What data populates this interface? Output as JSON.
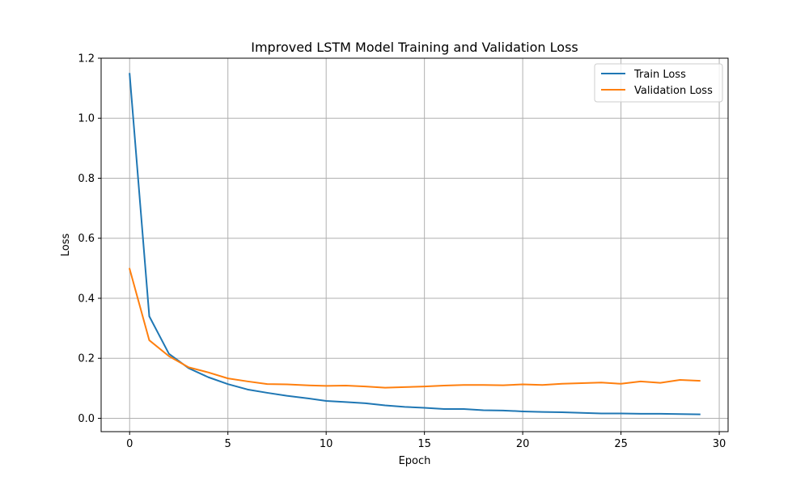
{
  "chart_data": {
    "type": "line",
    "title": "Improved LSTM Model Training and Validation Loss",
    "xlabel": "Epoch",
    "ylabel": "Loss",
    "xlim": [
      -1.45,
      30.45
    ],
    "ylim": [
      -0.0445,
      1.2
    ],
    "xticks": [
      0,
      5,
      10,
      15,
      20,
      25,
      30
    ],
    "xtick_labels": [
      "0",
      "5",
      "10",
      "15",
      "20",
      "25",
      "30"
    ],
    "yticks": [
      0.0,
      0.2,
      0.4,
      0.6,
      0.8,
      1.0,
      1.2
    ],
    "ytick_labels": [
      "0.0",
      "0.2",
      "0.4",
      "0.6",
      "0.8",
      "1.0",
      "1.2"
    ],
    "grid": true,
    "legend_position": "top-right",
    "x": [
      0,
      1,
      2,
      3,
      4,
      5,
      6,
      7,
      8,
      9,
      10,
      11,
      12,
      13,
      14,
      15,
      16,
      17,
      18,
      19,
      20,
      21,
      22,
      23,
      24,
      25,
      26,
      27,
      28,
      29
    ],
    "series": [
      {
        "name": "Train Loss",
        "color": "#1f77b4",
        "values": [
          1.148,
          0.34,
          0.215,
          0.167,
          0.137,
          0.114,
          0.096,
          0.085,
          0.075,
          0.067,
          0.058,
          0.054,
          0.05,
          0.043,
          0.038,
          0.035,
          0.031,
          0.031,
          0.027,
          0.026,
          0.023,
          0.021,
          0.02,
          0.018,
          0.016,
          0.016,
          0.015,
          0.015,
          0.014,
          0.013
        ]
      },
      {
        "name": "Validation Loss",
        "color": "#ff7f0e",
        "values": [
          0.498,
          0.26,
          0.207,
          0.17,
          0.153,
          0.133,
          0.123,
          0.114,
          0.113,
          0.11,
          0.108,
          0.109,
          0.106,
          0.102,
          0.104,
          0.106,
          0.109,
          0.111,
          0.111,
          0.11,
          0.113,
          0.111,
          0.115,
          0.117,
          0.119,
          0.115,
          0.123,
          0.118,
          0.128,
          0.125
        ]
      }
    ]
  }
}
